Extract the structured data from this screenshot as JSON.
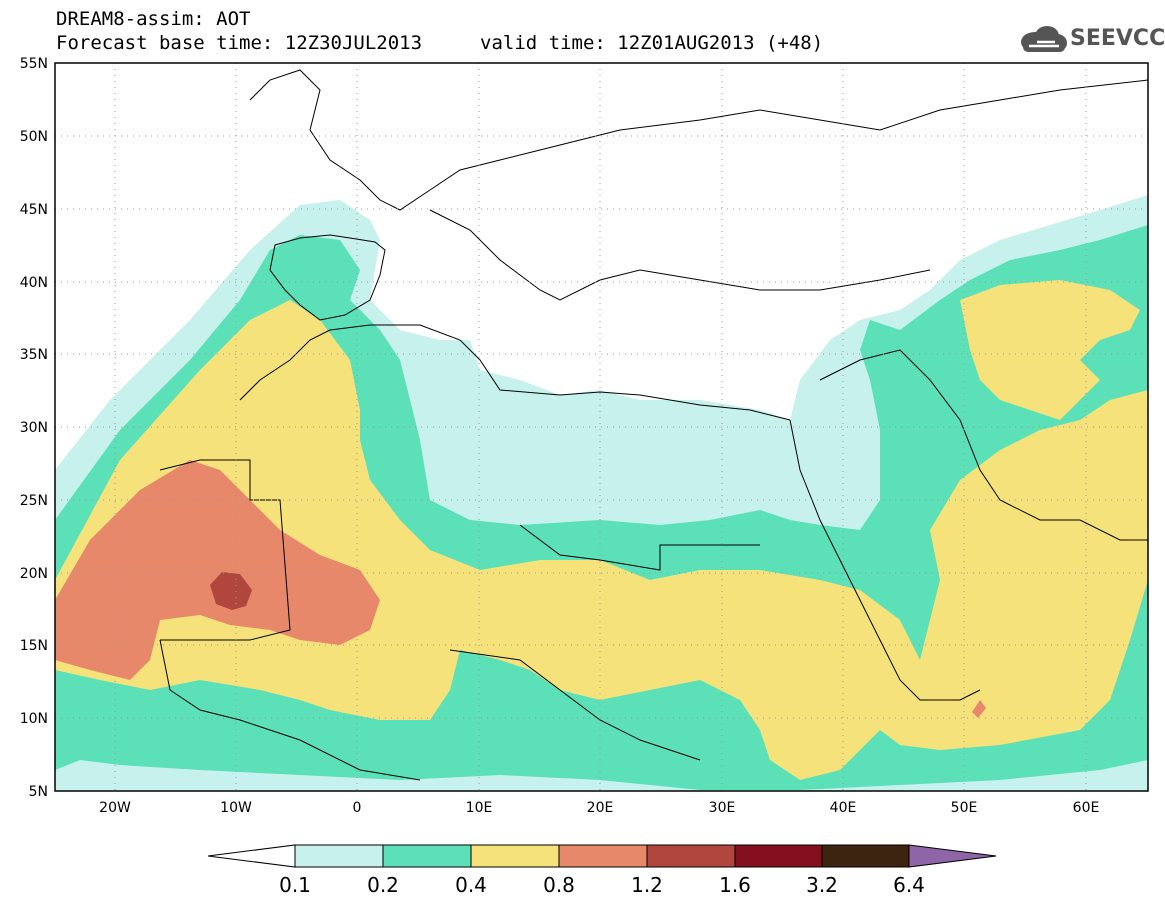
{
  "header": {
    "title_line1": "DREAM8-assim: AOT",
    "title_line2": "Forecast base time: 12Z30JUL2013",
    "valid_time": "valid time: 12Z01AUG2013 (+48)",
    "logo_text": "SEEVCCC"
  },
  "map": {
    "lon_range": [
      -25,
      65
    ],
    "lat_range": [
      5,
      55
    ],
    "lat_labels": [
      "55N",
      "50N",
      "45N",
      "40N",
      "35N",
      "30N",
      "25N",
      "20N",
      "15N",
      "10N",
      "5N"
    ],
    "lon_labels": [
      "20W",
      "10W",
      "0",
      "10E",
      "20E",
      "30E",
      "40E",
      "50E",
      "60E"
    ],
    "grid": "dotted"
  },
  "colorbar": {
    "labels": [
      "0.1",
      "0.2",
      "0.4",
      "0.8",
      "1.2",
      "1.6",
      "3.2",
      "6.4"
    ],
    "colors": [
      "#ffffff",
      "#c6f1ec",
      "#5ce0b8",
      "#f5e27a",
      "#e8886a",
      "#b0463c",
      "#84101e",
      "#3c2410",
      "#8e66a8"
    ]
  },
  "legend_colors": {
    "c01": "#c6f1ec",
    "c02": "#5ce0b8",
    "c04": "#f5e27a",
    "c08": "#e8886a",
    "c12": "#b0463c"
  }
}
